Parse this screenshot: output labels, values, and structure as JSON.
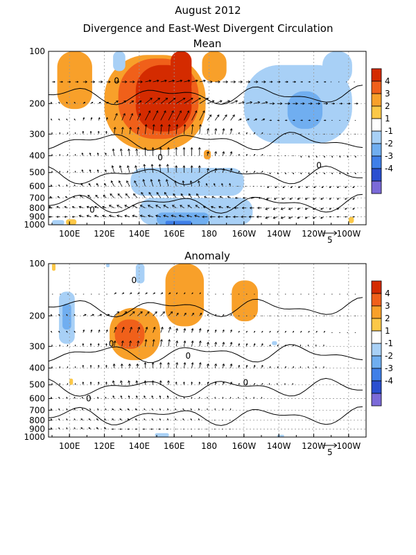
{
  "figure": {
    "title_line1": "August 2012",
    "title_line2": "Divergence and East-West Divergent Circulation"
  },
  "chart_data": [
    {
      "type": "heatmap",
      "panel_title": "Mean",
      "x_tick_labels": [
        "100E",
        "120E",
        "140E",
        "160E",
        "180",
        "160W",
        "140W",
        "120W",
        "100W"
      ],
      "x_ticks_lon": [
        100,
        120,
        140,
        160,
        180,
        200,
        220,
        240,
        260
      ],
      "xlim_lon": [
        88,
        270
      ],
      "y_tick_labels": [
        "100",
        "200",
        "300",
        "400",
        "500",
        "600",
        "700",
        "800",
        "900",
        "1000"
      ],
      "y_ticks_hpa": [
        100,
        200,
        300,
        400,
        500,
        600,
        700,
        800,
        900,
        1000
      ],
      "ylim_hpa": [
        100,
        1000
      ],
      "y_scale": "log",
      "grid": true,
      "colorbar": {
        "labels": [
          "4",
          "3",
          "2",
          "1",
          "-1",
          "-2",
          "-3",
          "-4"
        ],
        "colors": [
          "#d42b00",
          "#f0601a",
          "#f8a02a",
          "#fcc848",
          "#ffffff",
          "#a8d0f6",
          "#70aef0",
          "#3f7fe8",
          "#2a4fd0",
          "#7b6ad8"
        ]
      },
      "vector_key_label": "5",
      "vector_key_value": 5,
      "regions": [
        {
          "lon_w": 93,
          "lon_e": 113,
          "p_top": 100,
          "p_bot": 215,
          "value": 2.2
        },
        {
          "lon_w": 120,
          "lon_e": 178,
          "p_top": 105,
          "p_bot": 370,
          "value": 2.2
        },
        {
          "lon_w": 128,
          "lon_e": 174,
          "p_top": 110,
          "p_bot": 320,
          "value": 3.1
        },
        {
          "lon_w": 138,
          "lon_e": 170,
          "p_top": 120,
          "p_bot": 290,
          "value": 4.2
        },
        {
          "lon_w": 158,
          "lon_e": 170,
          "p_top": 100,
          "p_bot": 175,
          "value": 4.3
        },
        {
          "lon_w": 176,
          "lon_e": 190,
          "p_top": 100,
          "p_bot": 150,
          "value": 2.0
        },
        {
          "lon_w": 177,
          "lon_e": 181,
          "p_top": 370,
          "p_bot": 420,
          "value": 2.0
        },
        {
          "lon_w": 98,
          "lon_e": 104,
          "p_top": 930,
          "p_bot": 1000,
          "value": 1.5
        },
        {
          "lon_w": 260,
          "lon_e": 263,
          "p_top": 900,
          "p_bot": 980,
          "value": 1.5
        },
        {
          "lon_w": 125,
          "lon_e": 132,
          "p_top": 100,
          "p_bot": 130,
          "value": -1.5
        },
        {
          "lon_w": 200,
          "lon_e": 262,
          "p_top": 120,
          "p_bot": 340,
          "value": -1.5
        },
        {
          "lon_w": 225,
          "lon_e": 245,
          "p_top": 170,
          "p_bot": 280,
          "value": -2.5
        },
        {
          "lon_w": 245,
          "lon_e": 262,
          "p_top": 100,
          "p_bot": 155,
          "value": -1.5
        },
        {
          "lon_w": 135,
          "lon_e": 200,
          "p_top": 470,
          "p_bot": 680,
          "value": -1.5
        },
        {
          "lon_w": 140,
          "lon_e": 205,
          "p_top": 700,
          "p_bot": 1000,
          "value": -1.5
        },
        {
          "lon_w": 150,
          "lon_e": 180,
          "p_top": 850,
          "p_bot": 1000,
          "value": -2.5
        },
        {
          "lon_w": 155,
          "lon_e": 170,
          "p_top": 950,
          "p_bot": 1000,
          "value": -3.5
        },
        {
          "lon_w": 90,
          "lon_e": 97,
          "p_top": 940,
          "p_bot": 1000,
          "value": -1.5
        }
      ],
      "vector_rows": [
        {
          "p": 150,
          "u": [
            1.5,
            2.0,
            2.5,
            3.0,
            3.0,
            2.5,
            2.0,
            1.5,
            1.0,
            -0.5
          ],
          "w": [
            0,
            0,
            0,
            0.5,
            0.5,
            0,
            0,
            0,
            0,
            0
          ]
        },
        {
          "p": 200,
          "u": [
            -0.5,
            1.0,
            2.0,
            3.5,
            4.5,
            3.5,
            3.0,
            2.5,
            2.0,
            1.5
          ],
          "w": [
            0.5,
            0.5,
            1.0,
            2.0,
            2.0,
            1.0,
            0.5,
            0,
            0,
            0
          ]
        },
        {
          "p": 250,
          "u": [
            -0.5,
            0.5,
            1.5,
            2.5,
            2.5,
            2.0,
            1.5,
            1.0,
            1.0,
            0.5
          ],
          "w": [
            0.5,
            1.0,
            2.5,
            3.5,
            3.5,
            2.0,
            0.5,
            0,
            0,
            0
          ]
        },
        {
          "p": 300,
          "u": [
            0,
            0,
            0.5,
            0.5,
            0.5,
            0.5,
            0.5,
            0.5,
            0.5,
            0.5
          ],
          "w": [
            0.5,
            1.0,
            2.5,
            3.5,
            3.5,
            2.0,
            0.5,
            0,
            0,
            0
          ]
        },
        {
          "p": 400,
          "u": [
            0,
            -0.5,
            -0.5,
            0,
            0,
            0.5,
            0.5,
            0.5,
            0.5,
            0.5
          ],
          "w": [
            0.5,
            1.0,
            2.5,
            3.0,
            3.0,
            1.5,
            0.5,
            0,
            -0.5,
            -0.5
          ]
        },
        {
          "p": 500,
          "u": [
            0,
            -0.5,
            -1.0,
            -0.5,
            0,
            0.5,
            0.5,
            0.5,
            0.5,
            0.5
          ],
          "w": [
            0.5,
            1.0,
            2.5,
            3.0,
            2.5,
            1.5,
            0.5,
            -0.5,
            -0.5,
            -0.5
          ]
        },
        {
          "p": 600,
          "u": [
            -0.5,
            -1.0,
            -1.5,
            -1.0,
            -0.5,
            -0.5,
            -0.5,
            -1.0,
            -1.0,
            -1.0
          ],
          "w": [
            0.5,
            1.0,
            2.0,
            2.5,
            2.0,
            1.0,
            0,
            -0.5,
            -0.5,
            -0.5
          ]
        },
        {
          "p": 700,
          "u": [
            -1.0,
            -1.5,
            -2.0,
            -2.0,
            -1.5,
            -1.5,
            -1.5,
            -1.5,
            -1.5,
            -1.0
          ],
          "w": [
            0.5,
            1.0,
            1.5,
            2.0,
            1.5,
            0.5,
            0,
            -0.5,
            -0.5,
            -0.5
          ]
        },
        {
          "p": 800,
          "u": [
            -1.5,
            -2.0,
            -2.5,
            -2.5,
            -2.0,
            -2.0,
            -2.0,
            -2.0,
            -1.5,
            -1.0
          ],
          "w": [
            0.5,
            0.5,
            1.0,
            1.0,
            1.0,
            0.5,
            0,
            -0.5,
            -0.5,
            -0.5
          ]
        },
        {
          "p": 900,
          "u": [
            -1.5,
            -2.0,
            -2.5,
            -2.5,
            -2.5,
            -2.5,
            -2.5,
            -2.0,
            -1.5,
            -1.0
          ],
          "w": [
            0,
            0.5,
            0.5,
            0.5,
            0.5,
            0,
            0,
            -0.5,
            -0.5,
            0
          ]
        }
      ],
      "contour_labels": [
        {
          "text": "0",
          "lon": 127,
          "p": 148
        },
        {
          "text": "0",
          "lon": 152,
          "p": 410
        },
        {
          "text": "0",
          "lon": 243,
          "p": 455
        },
        {
          "text": "0",
          "lon": 113,
          "p": 820
        }
      ]
    },
    {
      "type": "heatmap",
      "panel_title": "Anomaly",
      "x_tick_labels": [
        "100E",
        "120E",
        "140E",
        "160E",
        "180",
        "160W",
        "140W",
        "120W",
        "100W"
      ],
      "x_ticks_lon": [
        100,
        120,
        140,
        160,
        180,
        200,
        220,
        240,
        260
      ],
      "xlim_lon": [
        88,
        270
      ],
      "y_tick_labels": [
        "100",
        "200",
        "300",
        "400",
        "500",
        "600",
        "700",
        "800",
        "900",
        "1000"
      ],
      "y_ticks_hpa": [
        100,
        200,
        300,
        400,
        500,
        600,
        700,
        800,
        900,
        1000
      ],
      "ylim_hpa": [
        100,
        1000
      ],
      "y_scale": "log",
      "grid": true,
      "colorbar": {
        "labels": [
          "4",
          "3",
          "2",
          "1",
          "-1",
          "-2",
          "-3",
          "-4"
        ],
        "colors": [
          "#d42b00",
          "#f0601a",
          "#f8a02a",
          "#fcc848",
          "#ffffff",
          "#a8d0f6",
          "#70aef0",
          "#3f7fe8",
          "#2a4fd0",
          "#7b6ad8"
        ]
      },
      "vector_key_label": "5",
      "vector_key_value": 5,
      "regions": [
        {
          "lon_w": 155,
          "lon_e": 177,
          "p_top": 100,
          "p_bot": 230,
          "value": 2.2
        },
        {
          "lon_w": 123,
          "lon_e": 152,
          "p_top": 180,
          "p_bot": 360,
          "value": 2.2
        },
        {
          "lon_w": 126,
          "lon_e": 143,
          "p_top": 210,
          "p_bot": 310,
          "value": 3.0
        },
        {
          "lon_w": 127,
          "lon_e": 134,
          "p_top": 235,
          "p_bot": 275,
          "value": 3.3
        },
        {
          "lon_w": 193,
          "lon_e": 208,
          "p_top": 125,
          "p_bot": 215,
          "value": 2.0
        },
        {
          "lon_w": 100,
          "lon_e": 102,
          "p_top": 460,
          "p_bot": 500,
          "value": 1.5
        },
        {
          "lon_w": 90,
          "lon_e": 92,
          "p_top": 100,
          "p_bot": 110,
          "value": 1.5
        },
        {
          "lon_w": 94,
          "lon_e": 103,
          "p_top": 145,
          "p_bot": 290,
          "value": -1.5
        },
        {
          "lon_w": 96,
          "lon_e": 101,
          "p_top": 170,
          "p_bot": 240,
          "value": -2.5
        },
        {
          "lon_w": 138,
          "lon_e": 143,
          "p_top": 100,
          "p_bot": 130,
          "value": -1.5
        },
        {
          "lon_w": 121,
          "lon_e": 123,
          "p_top": 100,
          "p_bot": 105,
          "value": -1.5
        },
        {
          "lon_w": 216,
          "lon_e": 219,
          "p_top": 280,
          "p_bot": 295,
          "value": -1.5
        },
        {
          "lon_w": 149,
          "lon_e": 157,
          "p_top": 950,
          "p_bot": 1000,
          "value": -1.5
        },
        {
          "lon_w": 219,
          "lon_e": 223,
          "p_top": 970,
          "p_bot": 1000,
          "value": -1.5
        }
      ],
      "vector_rows": [
        {
          "p": 150,
          "u": [
            0.5,
            0.5,
            1.0,
            1.0,
            0.5,
            0.5,
            0.5,
            0.5,
            0.5,
            0.5
          ],
          "w": [
            0,
            0,
            0.5,
            0.5,
            0.5,
            0,
            0,
            0,
            0,
            0
          ]
        },
        {
          "p": 200,
          "u": [
            -0.5,
            1.5,
            2.5,
            2.0,
            1.0,
            0.5,
            0.5,
            0.5,
            0.5,
            0.5
          ],
          "w": [
            0.5,
            0.5,
            1.5,
            1.5,
            1.0,
            0.5,
            0,
            0,
            0,
            0
          ]
        },
        {
          "p": 250,
          "u": [
            -0.5,
            0.5,
            1.0,
            1.0,
            0.5,
            0.5,
            0.5,
            0.5,
            0.5,
            0.5
          ],
          "w": [
            0.5,
            1.0,
            2.0,
            2.0,
            1.5,
            1.0,
            0.5,
            0.5,
            0.5,
            0
          ]
        },
        {
          "p": 300,
          "u": [
            0,
            0,
            0.5,
            0.5,
            0.5,
            0.5,
            0.5,
            0.5,
            0,
            0
          ],
          "w": [
            0.5,
            1.0,
            2.0,
            2.5,
            2.0,
            1.5,
            1.0,
            0.5,
            0.5,
            0
          ]
        },
        {
          "p": 400,
          "u": [
            0,
            0,
            0,
            0,
            0.5,
            0.5,
            0.5,
            0.5,
            0,
            0
          ],
          "w": [
            0.5,
            1.0,
            1.5,
            2.0,
            2.0,
            1.5,
            1.0,
            0.5,
            0.5,
            0
          ]
        },
        {
          "p": 500,
          "u": [
            0,
            0,
            -0.5,
            0,
            0,
            0.5,
            0.5,
            0,
            0,
            0
          ],
          "w": [
            0.5,
            1.0,
            1.5,
            1.5,
            1.0,
            1.0,
            0.5,
            0.5,
            0,
            0
          ]
        },
        {
          "p": 600,
          "u": [
            -0.5,
            -0.5,
            -0.5,
            -0.5,
            0,
            0,
            0,
            0,
            0,
            0
          ],
          "w": [
            0.5,
            0.5,
            1.0,
            1.0,
            0.5,
            0.5,
            0.5,
            0,
            0,
            0
          ]
        },
        {
          "p": 700,
          "u": [
            -0.5,
            -0.5,
            -1.0,
            -0.5,
            -0.5,
            0,
            0,
            0,
            0,
            0
          ],
          "w": [
            0.5,
            0.5,
            0.5,
            0.5,
            0.5,
            0.5,
            0,
            0,
            0,
            0
          ]
        },
        {
          "p": 800,
          "u": [
            -0.5,
            -1.0,
            -1.0,
            -0.5,
            -0.5,
            -0.5,
            0,
            0,
            0,
            0
          ],
          "w": [
            0.5,
            0.5,
            0.5,
            0.5,
            0.5,
            0,
            0,
            0,
            0,
            0
          ]
        },
        {
          "p": 900,
          "u": [
            -0.5,
            -1.0,
            -1.0,
            -1.0,
            -0.5,
            -0.5,
            0,
            0,
            0,
            0
          ],
          "w": [
            0.5,
            0.5,
            0,
            0,
            0,
            0,
            0,
            0,
            0,
            0
          ]
        }
      ],
      "contour_labels": [
        {
          "text": "0",
          "lon": 137,
          "p": 125
        },
        {
          "text": "0",
          "lon": 124,
          "p": 290
        },
        {
          "text": "0",
          "lon": 168,
          "p": 340
        },
        {
          "text": "0",
          "lon": 111,
          "p": 600
        },
        {
          "text": "0",
          "lon": 201,
          "p": 485
        }
      ]
    }
  ]
}
